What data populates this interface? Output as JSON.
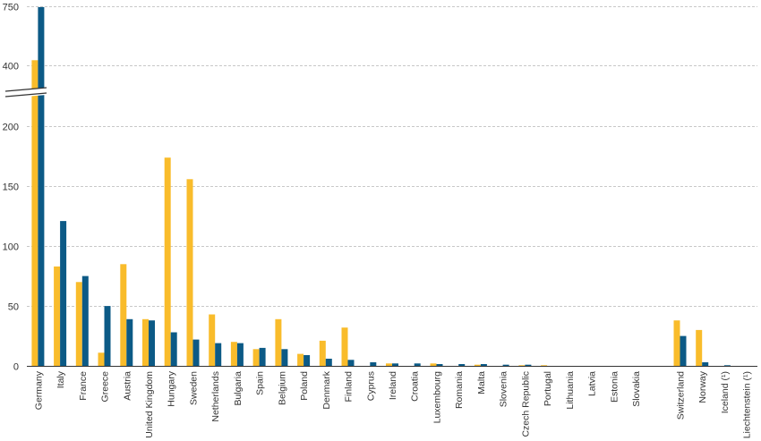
{
  "chart_data": {
    "type": "bar",
    "broken_axis": true,
    "y_ticks": [
      0,
      50,
      100,
      150,
      200,
      400,
      750
    ],
    "colors": {
      "series1": "#f9bc2b",
      "series2": "#0c5a86"
    },
    "categories": [
      "Germany",
      "Italy",
      "France",
      "Greece",
      "Austria",
      "United Kingdom",
      "Hungary",
      "Sweden",
      "Netherlands",
      "Bulgaria",
      "Spain",
      "Belgium",
      "Poland",
      "Denmark",
      "Finland",
      "Cyprus",
      "Ireland",
      "Croatia",
      "Luxembourg",
      "Romania",
      "Malta",
      "Slovenia",
      "Czech Republic",
      "Portugal",
      "Lithuania",
      "Latvia",
      "Estonia",
      "Slovakia",
      "",
      "Switzerland",
      "Norway",
      "Iceland (¹)",
      "Liechtenstein (¹)"
    ],
    "series": [
      {
        "values": [
          430,
          83,
          70,
          11,
          85,
          39,
          174,
          156,
          43,
          20,
          14,
          39,
          10,
          21,
          32,
          0,
          2,
          0,
          2,
          0,
          1,
          0,
          0.5,
          0.5,
          0,
          0,
          0,
          0,
          null,
          38,
          30,
          0,
          0
        ]
      },
      {
        "values": [
          745,
          121,
          75,
          50,
          39,
          38,
          28,
          22,
          19,
          19,
          15,
          14,
          9,
          6,
          5,
          3,
          2,
          2,
          1.5,
          1.5,
          1.5,
          1,
          1,
          0,
          0,
          0,
          0,
          0,
          null,
          25,
          3,
          0.5,
          0
        ]
      }
    ],
    "xlabel": "",
    "ylabel": "",
    "legend": "none",
    "grid": true
  }
}
